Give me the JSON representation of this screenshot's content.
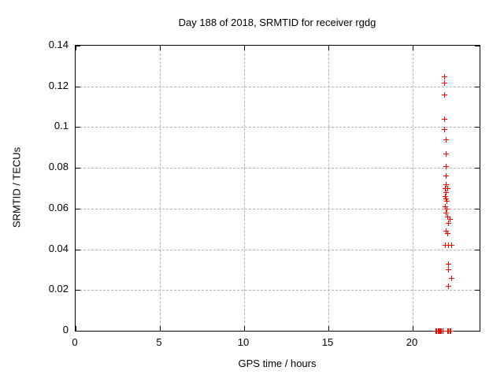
{
  "title": "Day 188 of 2018, SRMTID for receiver rgdg",
  "colors": {
    "background": "#ffffff",
    "axis": "#000000",
    "grid": "#b4b4b4",
    "marker": "#ff0000",
    "text": "#000000"
  },
  "chart_data": {
    "type": "scatter",
    "title": "Day 188 of 2018, SRMTID for receiver rgdg",
    "xlabel": "GPS time / hours",
    "ylabel": "SRMTID / TECUs",
    "xlim": [
      0,
      24
    ],
    "ylim": [
      0,
      0.14
    ],
    "x_ticks": [
      0,
      5,
      10,
      15,
      20
    ],
    "x_tick_labels": [
      "0",
      "5",
      "10",
      "15",
      "20"
    ],
    "y_ticks": [
      0,
      0.02,
      0.04,
      0.06,
      0.08,
      0.1,
      0.12,
      0.14
    ],
    "y_tick_labels": [
      "0",
      "0.02",
      "0.04",
      "0.06",
      "0.08",
      "0.1",
      "0.12",
      "0.14"
    ],
    "grid": true,
    "grid_style": "dashed",
    "legend": "none",
    "marker": "plus",
    "series": [
      {
        "name": "SRMTID",
        "points": [
          [
            21.9,
            0.125
          ],
          [
            21.9,
            0.122
          ],
          [
            21.9,
            0.116
          ],
          [
            21.9,
            0.104
          ],
          [
            21.9,
            0.099
          ],
          [
            21.99,
            0.094
          ],
          [
            21.99,
            0.087
          ],
          [
            21.99,
            0.081
          ],
          [
            21.99,
            0.076
          ],
          [
            21.99,
            0.072
          ],
          [
            21.94,
            0.07
          ],
          [
            22.08,
            0.07
          ],
          [
            21.99,
            0.068
          ],
          [
            21.94,
            0.066
          ],
          [
            21.99,
            0.065
          ],
          [
            22.03,
            0.064
          ],
          [
            21.94,
            0.061
          ],
          [
            22.03,
            0.06
          ],
          [
            21.99,
            0.058
          ],
          [
            22.08,
            0.056
          ],
          [
            22.22,
            0.055
          ],
          [
            22.13,
            0.053
          ],
          [
            21.99,
            0.049
          ],
          [
            22.08,
            0.048
          ],
          [
            21.94,
            0.042
          ],
          [
            22.13,
            0.042
          ],
          [
            22.31,
            0.042
          ],
          [
            22.13,
            0.033
          ],
          [
            22.13,
            0.03
          ],
          [
            22.31,
            0.026
          ],
          [
            22.13,
            0.022
          ],
          [
            21.4,
            0
          ],
          [
            21.45,
            0
          ],
          [
            21.5,
            0
          ],
          [
            21.55,
            0
          ],
          [
            21.6,
            0
          ],
          [
            21.68,
            0
          ],
          [
            21.73,
            0
          ],
          [
            21.78,
            0
          ],
          [
            22.1,
            0
          ],
          [
            22.15,
            0
          ],
          [
            22.2,
            0
          ],
          [
            22.25,
            0
          ]
        ]
      }
    ]
  }
}
